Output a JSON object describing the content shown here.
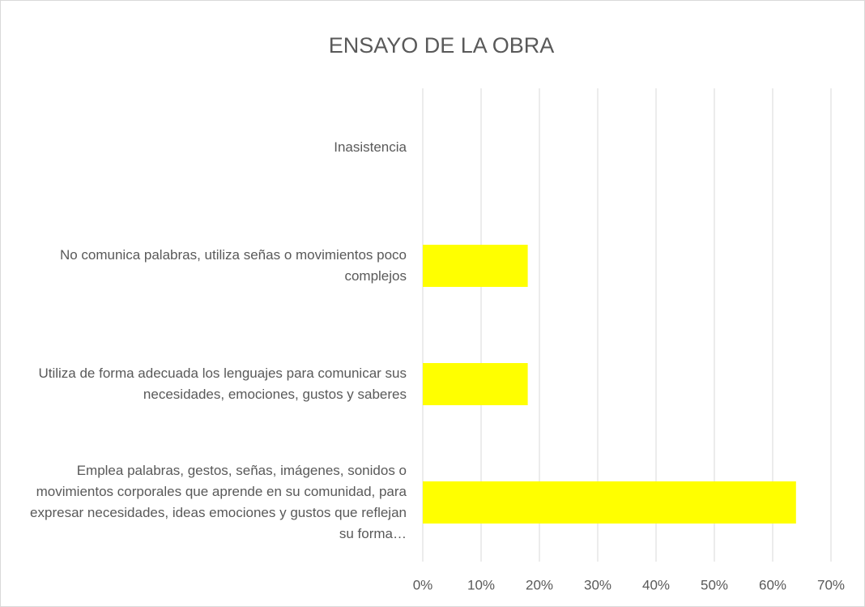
{
  "chart_data": {
    "type": "bar",
    "orientation": "horizontal",
    "title": "ENSAYO DE LA OBRA",
    "categories": [
      "Inasistencia",
      "No comunica palabras, utiliza señas o movimientos poco complejos",
      "Utiliza de forma adecuada los lenguajes para comunicar sus necesidades, emociones, gustos y saberes",
      "Emplea palabras, gestos, señas, imágenes, sonidos o movimientos corporales que aprende en su comunidad, para expresar necesidades, ideas emociones y gustos que reflejan su forma…"
    ],
    "values": [
      0,
      18,
      18,
      64
    ],
    "color": "#ffff00",
    "xlim": [
      0,
      70
    ],
    "xticks": [
      {
        "value": 0,
        "label": "0%"
      },
      {
        "value": 10,
        "label": "10%"
      },
      {
        "value": 20,
        "label": "20%"
      },
      {
        "value": 30,
        "label": "30%"
      },
      {
        "value": 40,
        "label": "40%"
      },
      {
        "value": 50,
        "label": "50%"
      },
      {
        "value": 60,
        "label": "60%"
      },
      {
        "value": 70,
        "label": "70%"
      }
    ],
    "grid": true
  }
}
